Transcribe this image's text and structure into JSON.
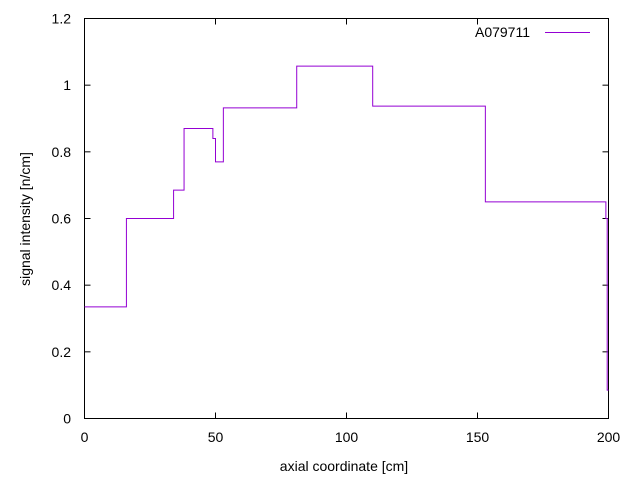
{
  "chart_data": {
    "type": "line",
    "style": "steps",
    "title": "",
    "xlabel": "axial coordinate [cm]",
    "ylabel": "signal intensity [n/cm]",
    "xlim": [
      0,
      200
    ],
    "ylim": [
      0,
      1.2
    ],
    "xticks": [
      0,
      50,
      100,
      150,
      200
    ],
    "xtick_labels": [
      "0",
      "50",
      "100",
      "150",
      "200"
    ],
    "yticks": [
      0,
      0.2,
      0.4,
      0.6,
      0.8,
      1,
      1.2
    ],
    "ytick_labels": [
      "0",
      "0.2",
      "0.4",
      "0.6",
      "0.8",
      "1",
      "1.2"
    ],
    "grid": false,
    "legend_position": "top-right",
    "series": [
      {
        "name": "A079711",
        "color": "#9400d3",
        "x": [
          0,
          16,
          34,
          38,
          49,
          50,
          53,
          81,
          110,
          153,
          199,
          199.5
        ],
        "y": [
          0.335,
          0.6,
          0.685,
          0.87,
          0.84,
          0.77,
          0.932,
          1.057,
          0.937,
          0.65,
          0.6,
          0.085
        ]
      }
    ]
  }
}
